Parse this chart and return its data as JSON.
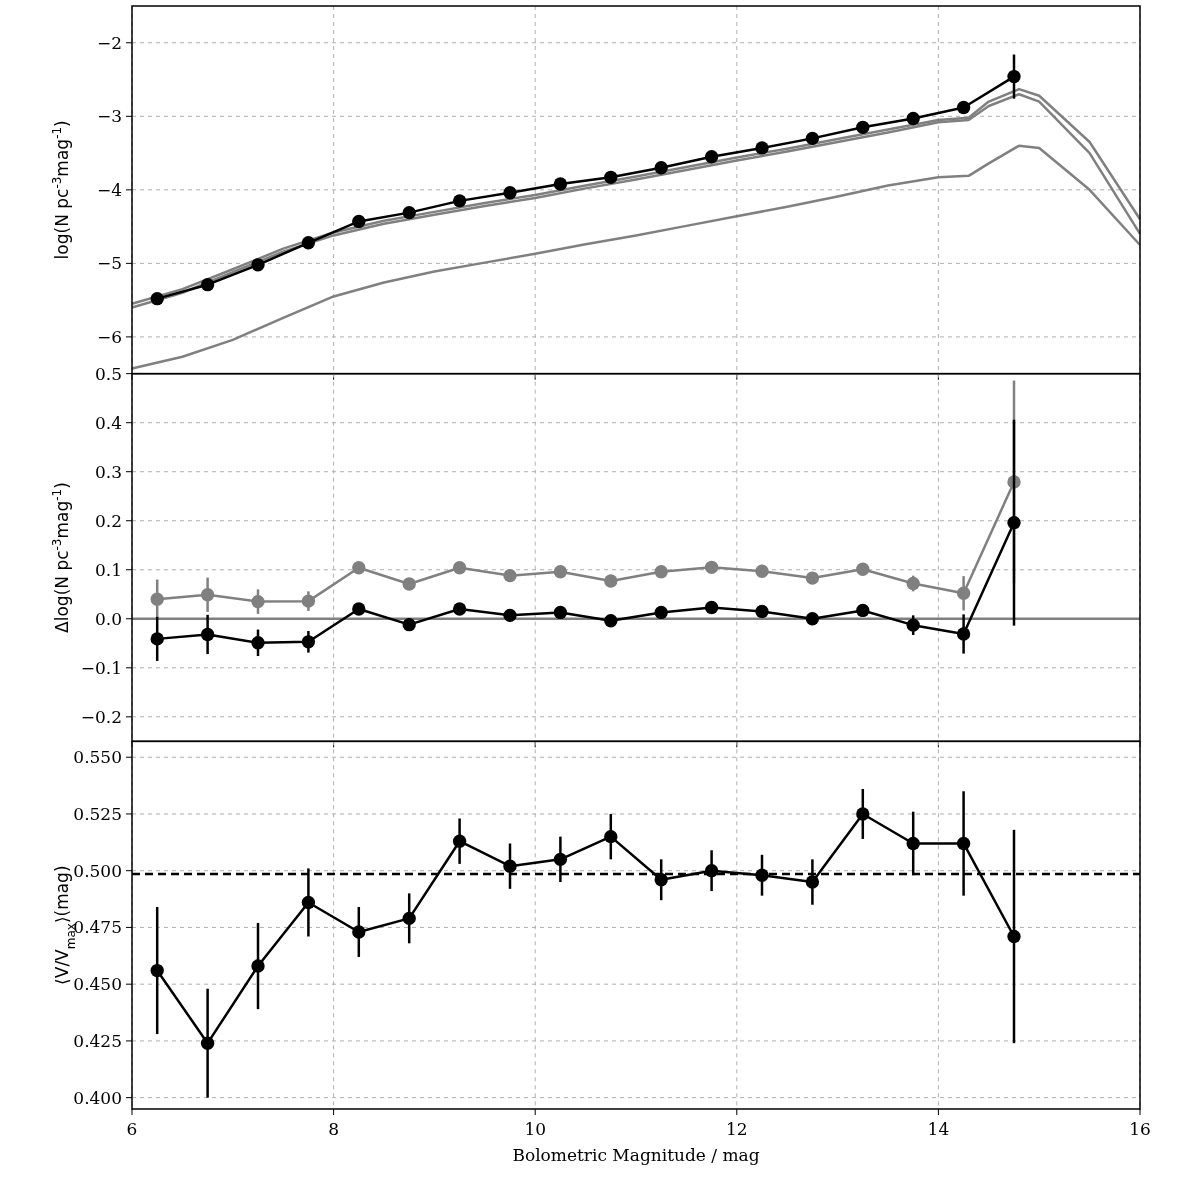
{
  "chart_data": [
    {
      "type": "line",
      "ylabel": "log(N pc$^{-3}$mag$^{-1}$)",
      "xlim": [
        6,
        16
      ],
      "xticks": [
        6,
        8,
        10,
        12,
        14,
        16
      ],
      "ylim": [
        -6.5,
        -1.5
      ],
      "yticks": [
        {
          "value": -6,
          "label": "−6"
        },
        {
          "value": -5,
          "label": "−5"
        },
        {
          "value": -4,
          "label": "−4"
        },
        {
          "value": -3,
          "label": "−3"
        },
        {
          "value": -2,
          "label": "−2"
        }
      ],
      "grid": true,
      "tick_labels": "y",
      "line_style": "solid",
      "series": [
        {
          "color": "#808080",
          "marker": "none",
          "x": [
            6,
            6.5,
            7,
            7.5,
            8,
            8.5,
            9,
            9.5,
            10,
            10.5,
            11,
            11.5,
            12,
            12.5,
            13,
            13.5,
            14,
            14.3,
            14.5,
            14.8,
            15,
            15.5,
            16
          ],
          "values": [
            -5.55,
            -5.35,
            -5.08,
            -4.8,
            -4.58,
            -4.42,
            -4.3,
            -4.18,
            -4.07,
            -3.94,
            -3.82,
            -3.69,
            -3.56,
            -3.44,
            -3.31,
            -3.18,
            -3.05,
            -3.02,
            -2.8,
            -2.63,
            -2.72,
            -3.35,
            -4.4
          ]
        },
        {
          "color": "#808080",
          "marker": "none",
          "x": [
            6,
            6.5,
            7,
            7.5,
            8,
            8.5,
            9,
            9.5,
            10,
            10.5,
            11,
            11.5,
            12,
            12.5,
            13,
            13.5,
            14,
            14.3,
            14.5,
            14.8,
            15,
            15.5,
            16
          ],
          "values": [
            -5.6,
            -5.4,
            -5.12,
            -4.84,
            -4.62,
            -4.46,
            -4.34,
            -4.22,
            -4.11,
            -3.98,
            -3.86,
            -3.73,
            -3.6,
            -3.48,
            -3.35,
            -3.22,
            -3.08,
            -3.05,
            -2.86,
            -2.7,
            -2.8,
            -3.5,
            -4.6
          ]
        },
        {
          "color": "#808080",
          "marker": "none",
          "x": [
            6,
            6.5,
            7,
            7.5,
            8,
            8.5,
            9,
            9.5,
            10,
            10.5,
            11,
            11.5,
            12,
            12.5,
            13,
            13.5,
            14,
            14.3,
            14.5,
            14.8,
            15,
            15.5,
            16
          ],
          "values": [
            -6.43,
            -6.27,
            -6.04,
            -5.74,
            -5.45,
            -5.26,
            -5.11,
            -4.99,
            -4.87,
            -4.74,
            -4.62,
            -4.49,
            -4.36,
            -4.23,
            -4.09,
            -3.94,
            -3.83,
            -3.81,
            -3.64,
            -3.4,
            -3.43,
            -4.0,
            -4.75
          ]
        },
        {
          "color": "#000000",
          "marker": "circle",
          "x": [
            6.25,
            6.75,
            7.25,
            7.75,
            8.25,
            8.75,
            9.25,
            9.75,
            10.25,
            10.75,
            11.25,
            11.75,
            12.25,
            12.75,
            13.25,
            13.75,
            14.25,
            14.75
          ],
          "values": [
            -5.48,
            -5.29,
            -5.02,
            -4.72,
            -4.43,
            -4.31,
            -4.15,
            -4.04,
            -3.92,
            -3.83,
            -3.7,
            -3.55,
            -3.43,
            -3.3,
            -3.15,
            -3.03,
            -2.88,
            -2.46
          ],
          "errors": [
            null,
            null,
            null,
            null,
            null,
            null,
            null,
            null,
            null,
            null,
            null,
            null,
            null,
            null,
            null,
            null,
            null,
            0.3
          ]
        }
      ]
    },
    {
      "type": "line",
      "ylabel": "Δlog(N pc$^{-3}$mag$^{-1}$)",
      "xlim": [
        6,
        16
      ],
      "xticks": [
        6,
        8,
        10,
        12,
        14,
        16
      ],
      "ylim": [
        -0.25,
        0.5
      ],
      "yticks": [
        {
          "value": -0.2,
          "label": "−0.2"
        },
        {
          "value": -0.1,
          "label": "−0.1"
        },
        {
          "value": 0,
          "label": "0.0"
        },
        0.1,
        0.2,
        0.3,
        0.4,
        0.5
      ],
      "grid": true,
      "tick_labels": "y",
      "line_style": "solid",
      "ref_lines": [
        {
          "axis": "y",
          "value": 0,
          "color": "#808080"
        }
      ],
      "series": [
        {
          "color": "#808080",
          "marker": "circle",
          "x": [
            6.25,
            6.75,
            7.25,
            7.75,
            8.25,
            8.75,
            9.25,
            9.75,
            10.25,
            10.75,
            11.25,
            11.75,
            12.25,
            12.75,
            13.25,
            13.75,
            14.25,
            14.75
          ],
          "values": [
            0.04,
            0.049,
            0.035,
            0.036,
            0.104,
            0.071,
            0.104,
            0.088,
            0.096,
            0.077,
            0.096,
            0.105,
            0.097,
            0.083,
            0.101,
            0.072,
            0.052,
            0.279
          ],
          "errors": [
            0.04,
            0.035,
            0.025,
            0.02,
            0.012,
            0.012,
            0.01,
            0.01,
            0.01,
            0.01,
            0.01,
            0.01,
            0.01,
            0.01,
            0.012,
            0.016,
            0.035,
            0.207
          ]
        },
        {
          "color": "#000000",
          "marker": "circle",
          "x": [
            6.25,
            6.75,
            7.25,
            7.75,
            8.25,
            8.75,
            9.25,
            9.75,
            10.25,
            10.75,
            11.25,
            11.75,
            12.25,
            12.75,
            13.25,
            13.75,
            14.25,
            14.75
          ],
          "values": [
            -0.041,
            -0.032,
            -0.049,
            -0.047,
            0.02,
            -0.012,
            0.02,
            0.007,
            0.013,
            -0.004,
            0.013,
            0.023,
            0.015,
            0.0,
            0.017,
            -0.013,
            -0.031,
            0.196
          ],
          "errors": [
            0.045,
            0.04,
            0.027,
            0.022,
            0.012,
            0.012,
            0.01,
            0.01,
            0.01,
            0.01,
            0.01,
            0.01,
            0.01,
            0.01,
            0.012,
            0.02,
            0.04,
            0.21
          ]
        }
      ]
    },
    {
      "type": "line",
      "ylabel": "⟨V/V$_{max}$⟩(mag)",
      "xlabel": "Bolometric Magnitude / mag",
      "xlim": [
        6,
        16
      ],
      "xticks": [
        6,
        8,
        10,
        12,
        14,
        16
      ],
      "ylim": [
        0.395,
        0.557
      ],
      "yticks": [
        {
          "value": 0.4,
          "label": "0.400"
        },
        {
          "value": 0.425,
          "label": "0.425"
        },
        {
          "value": 0.45,
          "label": "0.450"
        },
        {
          "value": 0.475,
          "label": "0.475"
        },
        {
          "value": 0.5,
          "label": "0.500"
        },
        {
          "value": 0.525,
          "label": "0.525"
        },
        {
          "value": 0.55,
          "label": "0.550"
        }
      ],
      "grid": true,
      "line_style": "solid",
      "ref_lines": [
        {
          "axis": "y",
          "value": 0.4985,
          "color": "#000000",
          "line_style": "dashed"
        }
      ],
      "series": [
        {
          "color": "#000000",
          "marker": "circle",
          "x": [
            6.25,
            6.75,
            7.25,
            7.75,
            8.25,
            8.75,
            9.25,
            9.75,
            10.25,
            10.75,
            11.25,
            11.75,
            12.25,
            12.75,
            13.25,
            13.75,
            14.25,
            14.75
          ],
          "values": [
            0.456,
            0.424,
            0.458,
            0.486,
            0.473,
            0.479,
            0.513,
            0.502,
            0.505,
            0.515,
            0.496,
            0.5,
            0.498,
            0.495,
            0.525,
            0.512,
            0.512,
            0.471
          ],
          "errors": [
            0.028,
            0.024,
            0.019,
            0.015,
            0.011,
            0.011,
            0.01,
            0.01,
            0.01,
            0.01,
            0.009,
            0.009,
            0.009,
            0.01,
            0.011,
            0.014,
            0.023,
            0.047
          ]
        }
      ]
    }
  ]
}
